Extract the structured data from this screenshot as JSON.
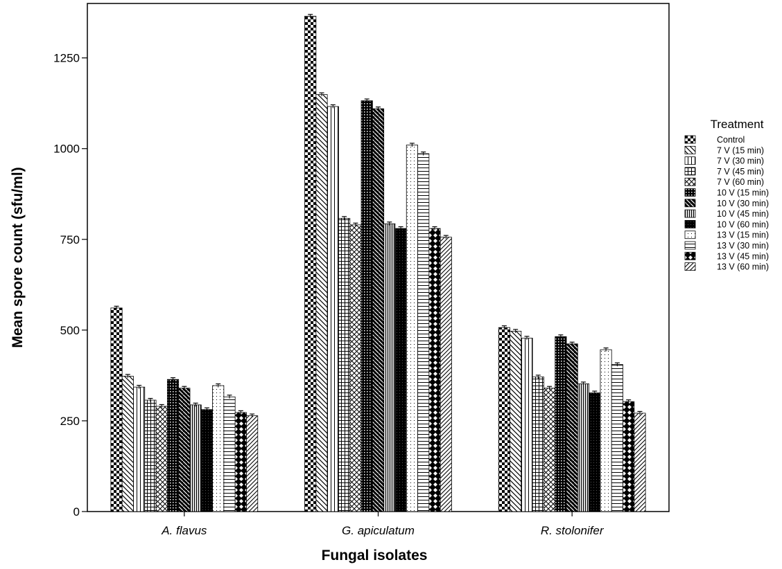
{
  "chart_data": {
    "type": "bar",
    "xlabel": "Fungal isolates",
    "ylabel": "Mean spore count (sfu/ml)",
    "ylim": [
      0,
      1400
    ],
    "yticks": [
      "0",
      "250",
      "500",
      "750",
      "1000",
      "1250"
    ],
    "categories": [
      "A. flavus",
      "G. apiculatum",
      "R. stolonifer"
    ],
    "legend_title": "Treatment",
    "legend_position": "right",
    "error_bars": true,
    "series": [
      {
        "name": "Control",
        "pattern": "checker",
        "values": [
          561,
          1365,
          507
        ]
      },
      {
        "name": "7 V (15 min)",
        "pattern": "diag-back",
        "values": [
          373,
          1149,
          497
        ]
      },
      {
        "name": "7 V (30 min)",
        "pattern": "vlines",
        "values": [
          343,
          1116,
          478
        ]
      },
      {
        "name": "7 V (45 min)",
        "pattern": "grid",
        "values": [
          307,
          808,
          371
        ]
      },
      {
        "name": "7 V (60 min)",
        "pattern": "diamond",
        "values": [
          290,
          790,
          340
        ]
      },
      {
        "name": "10 V (15 min)",
        "pattern": "dots-dark",
        "values": [
          364,
          1132,
          482
        ]
      },
      {
        "name": "10 V (30 min)",
        "pattern": "diag-dark",
        "values": [
          340,
          1110,
          462
        ]
      },
      {
        "name": "10 V (45 min)",
        "pattern": "vlines-dense",
        "values": [
          294,
          793,
          352
        ]
      },
      {
        "name": "10 V (60 min)",
        "pattern": "solid-dark",
        "values": [
          281,
          780,
          327
        ]
      },
      {
        "name": "13 V (15 min)",
        "pattern": "dots-light",
        "values": [
          347,
          1010,
          446
        ]
      },
      {
        "name": "13 V (30 min)",
        "pattern": "hlines",
        "values": [
          316,
          986,
          405
        ]
      },
      {
        "name": "13 V (45 min)",
        "pattern": "xdiamond",
        "values": [
          273,
          780,
          303
        ]
      },
      {
        "name": "13 V (60 min)",
        "pattern": "diag-fwd",
        "values": [
          264,
          756,
          271
        ]
      }
    ]
  }
}
